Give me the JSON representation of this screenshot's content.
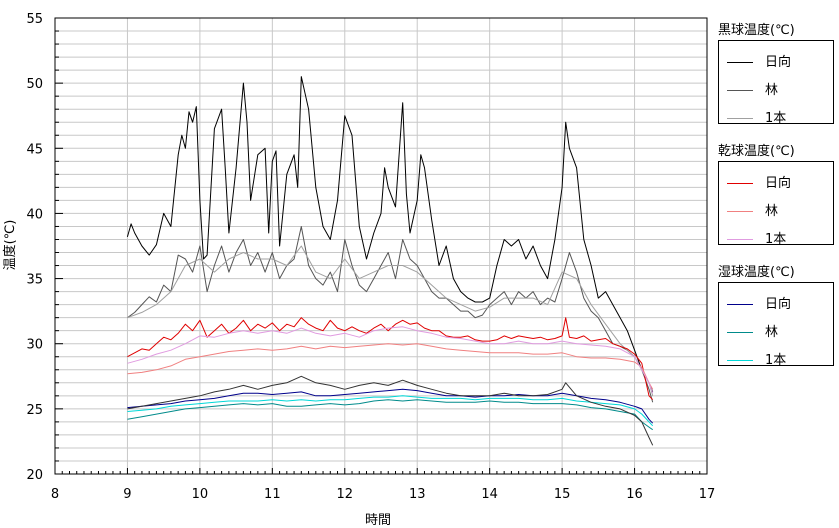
{
  "chart_data": {
    "type": "line",
    "xlabel": "時間",
    "ylabel": "温度(℃)",
    "xlim": [
      8,
      17
    ],
    "ylim": [
      20,
      55
    ],
    "x_ticks": [
      "8",
      "9",
      "10",
      "11",
      "12",
      "13",
      "14",
      "15",
      "16",
      "17"
    ],
    "y_ticks": [
      "20",
      "25",
      "30",
      "35",
      "40",
      "45",
      "50",
      "55"
    ],
    "grid": true,
    "legend_position": "right",
    "legend_groups": [
      {
        "title": "黒球温度(℃)",
        "items": [
          "日向",
          "林",
          "1本"
        ]
      },
      {
        "title": "乾球温度(℃)",
        "items": [
          "日向",
          "林",
          "1本"
        ]
      },
      {
        "title": "湿球温度(℃)",
        "items": [
          "日向",
          "林",
          "1本"
        ]
      }
    ],
    "series": [
      {
        "name": "日向",
        "group": "黒球温度(℃)",
        "color": "#000000",
        "x": [
          9.0,
          9.05,
          9.1,
          9.2,
          9.3,
          9.4,
          9.5,
          9.6,
          9.7,
          9.75,
          9.8,
          9.85,
          9.9,
          9.95,
          10.0,
          10.05,
          10.1,
          10.2,
          10.3,
          10.35,
          10.4,
          10.5,
          10.6,
          10.65,
          10.7,
          10.8,
          10.9,
          10.95,
          11.0,
          11.05,
          11.1,
          11.2,
          11.3,
          11.35,
          11.4,
          11.5,
          11.6,
          11.7,
          11.8,
          11.9,
          12.0,
          12.1,
          12.2,
          12.3,
          12.4,
          12.5,
          12.55,
          12.6,
          12.7,
          12.8,
          12.85,
          12.9,
          13.0,
          13.05,
          13.1,
          13.2,
          13.3,
          13.4,
          13.5,
          13.6,
          13.7,
          13.8,
          13.9,
          14.0,
          14.1,
          14.2,
          14.3,
          14.4,
          14.5,
          14.6,
          14.7,
          14.8,
          14.9,
          15.0,
          15.05,
          15.1,
          15.2,
          15.3,
          15.4,
          15.5,
          15.6,
          15.7,
          15.8,
          15.9,
          16.0,
          16.1,
          16.2,
          16.25
        ],
        "values": [
          38.2,
          39.2,
          38.5,
          37.5,
          36.8,
          37.6,
          40.0,
          39.0,
          44.5,
          46.0,
          45.0,
          47.8,
          47.0,
          48.2,
          41.0,
          36.5,
          36.8,
          46.5,
          48.0,
          43.5,
          38.5,
          43.5,
          50.0,
          47.0,
          41.0,
          44.5,
          45.0,
          38.5,
          44.0,
          44.8,
          37.5,
          43.0,
          44.5,
          42.0,
          50.5,
          48.0,
          42.0,
          39.0,
          38.0,
          41.0,
          47.5,
          46.0,
          39.0,
          36.5,
          38.5,
          40.0,
          43.5,
          42.0,
          40.5,
          48.5,
          41.5,
          38.5,
          41.0,
          44.5,
          43.5,
          39.5,
          36.0,
          37.5,
          35.0,
          34.0,
          33.5,
          33.2,
          33.2,
          33.5,
          36.0,
          38.0,
          37.5,
          38.0,
          36.5,
          37.5,
          36.0,
          35.0,
          38.0,
          42.0,
          47.0,
          45.0,
          43.5,
          38.0,
          36.0,
          33.5,
          34.0,
          33.0,
          32.0,
          31.0,
          29.5,
          28.0,
          27.0,
          26.3
        ]
      },
      {
        "name": "林",
        "group": "黒球温度(℃)",
        "color": "#555555",
        "x": [
          9.0,
          9.1,
          9.2,
          9.3,
          9.4,
          9.5,
          9.6,
          9.7,
          9.8,
          9.9,
          10.0,
          10.1,
          10.2,
          10.3,
          10.4,
          10.5,
          10.6,
          10.7,
          10.8,
          10.9,
          11.0,
          11.1,
          11.2,
          11.3,
          11.4,
          11.5,
          11.6,
          11.7,
          11.8,
          11.9,
          12.0,
          12.1,
          12.2,
          12.3,
          12.4,
          12.5,
          12.6,
          12.7,
          12.8,
          12.9,
          13.0,
          13.1,
          13.2,
          13.3,
          13.4,
          13.5,
          13.6,
          13.7,
          13.8,
          13.9,
          14.0,
          14.1,
          14.2,
          14.3,
          14.4,
          14.5,
          14.6,
          14.7,
          14.8,
          14.9,
          15.0,
          15.1,
          15.2,
          15.3,
          15.4,
          15.5,
          15.6,
          15.7,
          15.8,
          15.9,
          16.0,
          16.1,
          16.2,
          16.25
        ],
        "values": [
          32.0,
          32.4,
          33.0,
          33.6,
          33.2,
          34.5,
          34.0,
          36.8,
          36.5,
          35.5,
          37.5,
          34.0,
          36.0,
          37.5,
          35.5,
          37.0,
          38.0,
          36.0,
          37.0,
          35.5,
          37.0,
          35.0,
          36.0,
          36.5,
          39.0,
          36.0,
          35.0,
          34.5,
          35.5,
          34.0,
          38.0,
          36.0,
          34.5,
          34.0,
          35.0,
          36.0,
          37.0,
          35.0,
          38.0,
          36.5,
          36.0,
          35.0,
          34.0,
          33.5,
          33.5,
          33.0,
          32.5,
          32.5,
          32.0,
          32.2,
          33.0,
          33.5,
          34.0,
          33.0,
          34.0,
          33.5,
          34.0,
          33.0,
          33.5,
          33.2,
          35.0,
          37.0,
          35.5,
          33.5,
          32.5,
          32.0,
          31.0,
          30.0,
          29.8,
          29.5,
          29.0,
          28.0,
          26.5,
          25.5
        ]
      },
      {
        "name": "1本",
        "group": "黒球温度(℃)",
        "color": "#a0a0a0",
        "x": [
          9.0,
          9.2,
          9.4,
          9.6,
          9.8,
          10.0,
          10.2,
          10.4,
          10.6,
          10.8,
          11.0,
          11.2,
          11.4,
          11.6,
          11.8,
          12.0,
          12.2,
          12.4,
          12.6,
          12.8,
          13.0,
          13.2,
          13.4,
          13.6,
          13.8,
          14.0,
          14.2,
          14.4,
          14.6,
          14.8,
          15.0,
          15.2,
          15.4,
          15.6,
          15.8,
          16.0,
          16.2,
          16.25
        ],
        "values": [
          32.0,
          32.4,
          33.0,
          34.0,
          36.0,
          36.5,
          35.5,
          36.5,
          37.0,
          36.5,
          36.5,
          36.0,
          37.5,
          35.5,
          35.0,
          36.5,
          35.0,
          35.5,
          36.0,
          36.0,
          35.5,
          34.5,
          33.5,
          33.0,
          32.5,
          32.8,
          33.5,
          33.5,
          33.5,
          33.0,
          35.5,
          35.0,
          33.0,
          31.5,
          30.0,
          29.0,
          27.0,
          26.0
        ]
      },
      {
        "name": "日向",
        "group": "乾球温度(℃)",
        "color": "#e00000",
        "x": [
          9.0,
          9.1,
          9.2,
          9.3,
          9.4,
          9.5,
          9.6,
          9.7,
          9.8,
          9.9,
          10.0,
          10.1,
          10.2,
          10.3,
          10.4,
          10.5,
          10.6,
          10.7,
          10.8,
          10.9,
          11.0,
          11.1,
          11.2,
          11.3,
          11.4,
          11.5,
          11.6,
          11.7,
          11.8,
          11.9,
          12.0,
          12.1,
          12.2,
          12.3,
          12.4,
          12.5,
          12.6,
          12.7,
          12.8,
          12.9,
          13.0,
          13.1,
          13.2,
          13.3,
          13.4,
          13.5,
          13.6,
          13.7,
          13.8,
          13.9,
          14.0,
          14.1,
          14.2,
          14.3,
          14.4,
          14.5,
          14.6,
          14.7,
          14.8,
          14.9,
          15.0,
          15.05,
          15.1,
          15.2,
          15.3,
          15.4,
          15.5,
          15.6,
          15.7,
          15.8,
          15.9,
          16.0,
          16.1,
          16.2,
          16.25
        ],
        "values": [
          29.0,
          29.3,
          29.6,
          29.5,
          30.0,
          30.5,
          30.3,
          30.8,
          31.5,
          31.0,
          31.8,
          30.5,
          31.0,
          31.5,
          30.8,
          31.2,
          31.8,
          31.0,
          31.5,
          31.2,
          31.6,
          31.0,
          31.5,
          31.3,
          32.0,
          31.5,
          31.2,
          31.0,
          31.8,
          31.2,
          31.0,
          31.3,
          31.0,
          30.8,
          31.2,
          31.5,
          31.0,
          31.5,
          31.8,
          31.5,
          31.6,
          31.2,
          31.0,
          31.0,
          30.6,
          30.5,
          30.5,
          30.6,
          30.3,
          30.2,
          30.2,
          30.3,
          30.6,
          30.4,
          30.6,
          30.5,
          30.4,
          30.5,
          30.3,
          30.4,
          30.6,
          32.0,
          30.5,
          30.4,
          30.6,
          30.2,
          30.3,
          30.4,
          30.0,
          29.8,
          29.6,
          29.2,
          28.5,
          26.0,
          25.7
        ]
      },
      {
        "name": "林",
        "group": "乾球温度(℃)",
        "color": "#f08080",
        "x": [
          9.0,
          9.2,
          9.4,
          9.6,
          9.8,
          10.0,
          10.2,
          10.4,
          10.6,
          10.8,
          11.0,
          11.2,
          11.4,
          11.6,
          11.8,
          12.0,
          12.2,
          12.4,
          12.6,
          12.8,
          13.0,
          13.2,
          13.4,
          13.6,
          13.8,
          14.0,
          14.2,
          14.4,
          14.6,
          14.8,
          15.0,
          15.2,
          15.4,
          15.6,
          15.8,
          16.0,
          16.1,
          16.2,
          16.25
        ],
        "values": [
          27.7,
          27.8,
          28.0,
          28.3,
          28.8,
          29.0,
          29.2,
          29.4,
          29.5,
          29.6,
          29.5,
          29.6,
          29.8,
          29.6,
          29.8,
          29.7,
          29.8,
          29.9,
          30.0,
          29.9,
          30.0,
          29.8,
          29.6,
          29.5,
          29.4,
          29.3,
          29.3,
          29.3,
          29.2,
          29.2,
          29.3,
          29.0,
          28.9,
          28.9,
          28.8,
          28.6,
          28.2,
          27.0,
          26.5
        ]
      },
      {
        "name": "1本",
        "group": "乾球温度(℃)",
        "color": "#e09be0",
        "x": [
          9.0,
          9.2,
          9.4,
          9.6,
          9.8,
          10.0,
          10.2,
          10.4,
          10.6,
          10.8,
          11.0,
          11.2,
          11.4,
          11.6,
          11.8,
          12.0,
          12.2,
          12.4,
          12.6,
          12.8,
          13.0,
          13.2,
          13.4,
          13.6,
          13.8,
          14.0,
          14.2,
          14.4,
          14.6,
          14.8,
          15.0,
          15.2,
          15.4,
          15.6,
          15.8,
          16.0,
          16.2,
          16.25
        ],
        "values": [
          28.5,
          28.8,
          29.2,
          29.5,
          30.0,
          30.6,
          30.5,
          30.8,
          31.0,
          30.8,
          31.0,
          30.8,
          31.2,
          30.8,
          30.6,
          30.8,
          30.5,
          31.0,
          31.2,
          31.3,
          31.0,
          30.8,
          30.5,
          30.4,
          30.2,
          30.0,
          30.0,
          30.2,
          30.0,
          30.0,
          30.2,
          30.0,
          29.9,
          29.8,
          29.6,
          29.0,
          27.0,
          26.2
        ]
      },
      {
        "name": "日向",
        "group": "湿球温度(℃)",
        "color": "#00008b",
        "x": [
          9.0,
          9.2,
          9.4,
          9.6,
          9.8,
          10.0,
          10.2,
          10.4,
          10.6,
          10.8,
          11.0,
          11.2,
          11.4,
          11.6,
          11.8,
          12.0,
          12.2,
          12.4,
          12.6,
          12.8,
          13.0,
          13.2,
          13.4,
          13.6,
          13.8,
          14.0,
          14.2,
          14.4,
          14.6,
          14.8,
          15.0,
          15.2,
          15.4,
          15.6,
          15.8,
          16.0,
          16.1,
          16.2,
          16.25
        ],
        "values": [
          25.1,
          25.2,
          25.3,
          25.4,
          25.6,
          25.7,
          25.8,
          26.0,
          26.2,
          26.2,
          26.1,
          26.2,
          26.3,
          26.0,
          26.0,
          26.1,
          26.2,
          26.3,
          26.4,
          26.5,
          26.4,
          26.2,
          26.0,
          26.0,
          25.9,
          26.0,
          26.0,
          26.1,
          26.0,
          26.0,
          26.2,
          26.0,
          25.8,
          25.7,
          25.5,
          25.2,
          25.0,
          24.2,
          23.9
        ]
      },
      {
        "name": "林",
        "group": "湿球温度(℃)",
        "color": "#008b8b",
        "x": [
          9.0,
          9.2,
          9.4,
          9.6,
          9.8,
          10.0,
          10.2,
          10.4,
          10.6,
          10.8,
          11.0,
          11.2,
          11.4,
          11.6,
          11.8,
          12.0,
          12.2,
          12.4,
          12.6,
          12.8,
          13.0,
          13.2,
          13.4,
          13.6,
          13.8,
          14.0,
          14.2,
          14.4,
          14.6,
          14.8,
          15.0,
          15.2,
          15.4,
          15.6,
          15.8,
          16.0,
          16.1,
          16.2,
          16.25
        ],
        "values": [
          24.2,
          24.4,
          24.6,
          24.8,
          25.0,
          25.1,
          25.2,
          25.3,
          25.4,
          25.3,
          25.4,
          25.2,
          25.2,
          25.3,
          25.4,
          25.3,
          25.4,
          25.6,
          25.7,
          25.6,
          25.7,
          25.6,
          25.5,
          25.5,
          25.5,
          25.6,
          25.5,
          25.5,
          25.4,
          25.4,
          25.4,
          25.3,
          25.1,
          25.0,
          24.8,
          24.6,
          24.0,
          23.6,
          23.4
        ]
      },
      {
        "name": "1本",
        "group": "湿球温度(℃)",
        "color": "#00d8d8",
        "x": [
          9.0,
          9.2,
          9.4,
          9.6,
          9.8,
          10.0,
          10.2,
          10.4,
          10.6,
          10.8,
          11.0,
          11.2,
          11.4,
          11.6,
          11.8,
          12.0,
          12.2,
          12.4,
          12.6,
          12.8,
          13.0,
          13.2,
          13.4,
          13.6,
          13.8,
          14.0,
          14.2,
          14.4,
          14.6,
          14.8,
          15.0,
          15.2,
          15.4,
          15.6,
          15.8,
          16.0,
          16.1,
          16.2,
          16.25
        ],
        "values": [
          24.8,
          24.9,
          25.0,
          25.2,
          25.3,
          25.4,
          25.5,
          25.6,
          25.6,
          25.6,
          25.7,
          25.6,
          25.7,
          25.6,
          25.7,
          25.7,
          25.8,
          25.9,
          25.9,
          26.0,
          25.9,
          25.8,
          25.8,
          25.8,
          25.7,
          25.8,
          25.8,
          25.8,
          25.7,
          25.7,
          25.8,
          25.6,
          25.5,
          25.4,
          25.3,
          25.0,
          24.6,
          24.0,
          23.7
        ]
      },
      {
        "name": "",
        "group": "",
        "color": "#333333",
        "x": [
          9.0,
          9.2,
          9.4,
          9.6,
          9.8,
          10.0,
          10.2,
          10.4,
          10.6,
          10.8,
          11.0,
          11.2,
          11.4,
          11.6,
          11.8,
          12.0,
          12.2,
          12.4,
          12.6,
          12.8,
          13.0,
          13.2,
          13.4,
          13.6,
          13.8,
          14.0,
          14.2,
          14.4,
          14.6,
          14.8,
          15.0,
          15.05,
          15.2,
          15.4,
          15.6,
          15.8,
          16.0,
          16.1,
          16.2,
          16.25
        ],
        "values": [
          25.0,
          25.2,
          25.4,
          25.6,
          25.8,
          26.0,
          26.3,
          26.5,
          26.8,
          26.5,
          26.8,
          27.0,
          27.5,
          27.0,
          26.8,
          26.5,
          26.8,
          27.0,
          26.8,
          27.2,
          26.8,
          26.5,
          26.2,
          26.0,
          26.0,
          26.0,
          26.2,
          26.0,
          26.0,
          26.1,
          26.5,
          27.0,
          26.0,
          25.5,
          25.2,
          25.0,
          24.5,
          24.0,
          22.8,
          22.2
        ]
      }
    ]
  }
}
